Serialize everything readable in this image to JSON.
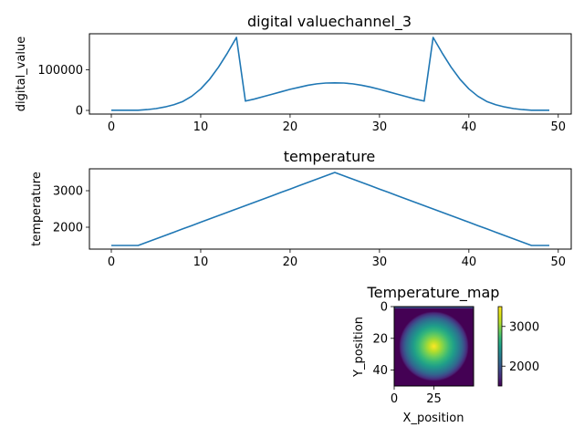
{
  "chart_data": [
    {
      "type": "line",
      "title": "digital valuechannel_3",
      "xlabel": "",
      "ylabel": "digital_value",
      "xlim": [
        -2.45,
        51.45
      ],
      "ylim": [
        -9000,
        189000
      ],
      "xticks": [
        0,
        10,
        20,
        30,
        40,
        50
      ],
      "yticks": [
        0,
        100000
      ],
      "ytick_labels": [
        "0",
        "100000"
      ],
      "color": "#1f77b4",
      "x": [
        0,
        1,
        2,
        3,
        4,
        5,
        6,
        7,
        8,
        9,
        10,
        11,
        12,
        13,
        14,
        15,
        16,
        17,
        18,
        19,
        20,
        21,
        22,
        23,
        24,
        25,
        26,
        27,
        28,
        29,
        30,
        31,
        32,
        33,
        34,
        35,
        36,
        37,
        38,
        39,
        40,
        41,
        42,
        43,
        44,
        45,
        46,
        47,
        48,
        49
      ],
      "y": [
        500,
        500,
        500,
        500,
        2000,
        4500,
        8500,
        14000,
        22000,
        35000,
        53000,
        77000,
        107000,
        142000,
        180000,
        23000,
        28000,
        34000,
        40000,
        46000,
        52000,
        57000,
        62000,
        65500,
        67500,
        68000,
        67500,
        65500,
        62000,
        57500,
        52000,
        46000,
        40000,
        34000,
        28000,
        23000,
        180000,
        142000,
        107000,
        77000,
        53000,
        35000,
        22000,
        14000,
        8500,
        4500,
        2000,
        500,
        500,
        500
      ]
    },
    {
      "type": "line",
      "title": "temperature",
      "xlabel": "",
      "ylabel": "temperature",
      "xlim": [
        -2.45,
        51.45
      ],
      "ylim": [
        1400,
        3600
      ],
      "xticks": [
        0,
        10,
        20,
        30,
        40,
        50
      ],
      "yticks": [
        2000,
        3000
      ],
      "ytick_labels": [
        "2000",
        "3000"
      ],
      "color": "#1f77b4",
      "x": [
        0,
        1,
        2,
        3,
        4,
        5,
        6,
        7,
        8,
        9,
        10,
        11,
        12,
        13,
        14,
        15,
        16,
        17,
        18,
        19,
        20,
        21,
        22,
        23,
        24,
        25,
        26,
        27,
        28,
        29,
        30,
        31,
        32,
        33,
        34,
        35,
        36,
        37,
        38,
        39,
        40,
        41,
        42,
        43,
        44,
        45,
        46,
        47,
        48,
        49
      ],
      "y": [
        1500,
        1500,
        1500,
        1500,
        1591,
        1682,
        1773,
        1864,
        1955,
        2045,
        2136,
        2227,
        2318,
        2409,
        2500,
        2591,
        2682,
        2773,
        2864,
        2955,
        3045,
        3136,
        3227,
        3318,
        3409,
        3500,
        3409,
        3318,
        3227,
        3136,
        3045,
        2955,
        2864,
        2773,
        2682,
        2591,
        2500,
        2409,
        2318,
        2227,
        2136,
        2045,
        1955,
        1864,
        1773,
        1682,
        1591,
        1500,
        1500,
        1500
      ]
    },
    {
      "type": "heatmap",
      "title": "Temperature_map",
      "xlabel": "X_position",
      "ylabel": "Y_position",
      "xlim": [
        0,
        50
      ],
      "ylim": [
        50,
        0
      ],
      "xticks": [
        0,
        25
      ],
      "yticks": [
        0,
        20,
        40
      ],
      "grid_size": 50,
      "center": [
        25,
        25
      ],
      "radius": 22,
      "min_value": 1500,
      "max_value": 3500,
      "colormap": "viridis",
      "colorbar": {
        "ticks": [
          2000,
          3000
        ],
        "tick_labels": [
          "2000",
          "3000"
        ],
        "range": [
          1500,
          3500
        ]
      }
    }
  ]
}
